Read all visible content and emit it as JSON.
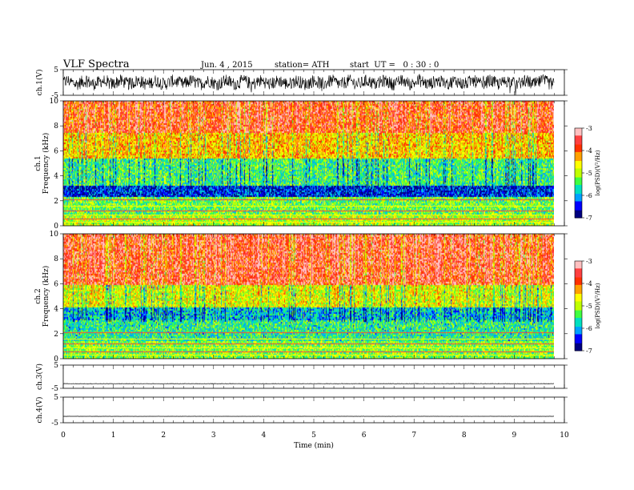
{
  "header": {
    "title": "VLF Spectra",
    "date": "Jun. 4 , 2015",
    "station": "station= ATH",
    "start_ut": "start  UT =   0 : 30 : 0"
  },
  "colors": {
    "colormap": [
      "#000080",
      "#0000ff",
      "#00a0ff",
      "#00e0c0",
      "#40ff40",
      "#c0ff00",
      "#ffff00",
      "#ffa000",
      "#ff3000",
      "#ff4040",
      "#ffc0c0"
    ],
    "waveform": "#000000"
  },
  "chart_data": [
    {
      "type": "line",
      "panel": "ch1-waveform",
      "ylabel": "ch.1(V)",
      "ylim": [
        -5,
        5
      ],
      "yticks": [
        "5",
        "-5"
      ],
      "x_range": [
        0,
        9.8
      ],
      "description_value": "continuous noisy signal, amplitude about ±3 V"
    },
    {
      "type": "heatmap",
      "panel": "ch1-spectrogram",
      "ylabel_channel": "ch.1",
      "ylabel": "Frequency  (kHz)",
      "ylim": [
        0,
        10
      ],
      "yticks": [
        "0",
        "2",
        "4",
        "6",
        "8",
        "10"
      ],
      "x_range": [
        0,
        9.8
      ],
      "colorbar_label": "log(PSD)(V²/Hz)",
      "colorbar_ticks": [
        "-3",
        "-4",
        "-5",
        "-6",
        "-7"
      ],
      "colorbar_range": [
        -7,
        -3
      ],
      "mean_level_by_band_kHz": [
        {
          "band": [
            0,
            1
          ],
          "level": -5.0
        },
        {
          "band": [
            1,
            2.4
          ],
          "level": -5.3
        },
        {
          "band": [
            2.4,
            3.3
          ],
          "level": -6.5
        },
        {
          "band": [
            3.3,
            5.5
          ],
          "level": -5.5
        },
        {
          "band": [
            5.5,
            7.5
          ],
          "level": -4.5
        },
        {
          "band": [
            7.5,
            10
          ],
          "level": -3.8
        }
      ]
    },
    {
      "type": "heatmap",
      "panel": "ch2-spectrogram",
      "ylabel_channel": "ch.2",
      "ylabel": "Frequency  (kHz)",
      "ylim": [
        0,
        10
      ],
      "yticks": [
        "0",
        "2",
        "4",
        "6",
        "8",
        "10"
      ],
      "x_range": [
        0,
        9.8
      ],
      "colorbar_label": "log(PSD)(V²/Hz)",
      "colorbar_ticks": [
        "-3",
        "-4",
        "-5",
        "-6",
        "-7"
      ],
      "colorbar_range": [
        -7,
        -3
      ],
      "mean_level_by_band_kHz": [
        {
          "band": [
            0,
            1.5
          ],
          "level": -5.2
        },
        {
          "band": [
            1.5,
            3.2
          ],
          "level": -5.6
        },
        {
          "band": [
            3.2,
            4.2
          ],
          "level": -5.9
        },
        {
          "band": [
            4.2,
            6
          ],
          "level": -4.8
        },
        {
          "band": [
            6,
            10
          ],
          "level": -3.7
        }
      ]
    },
    {
      "type": "line",
      "panel": "ch3-waveform",
      "ylabel": "ch.3(V)",
      "ylim": [
        -5,
        5
      ],
      "yticks": [
        "5",
        "-5"
      ],
      "x_range": [
        0,
        9.8
      ],
      "description_value": "flat line near -3 V"
    },
    {
      "type": "line",
      "panel": "ch4-waveform",
      "ylabel": "ch.4(V)",
      "ylim": [
        -5,
        5
      ],
      "yticks": [
        "5",
        "-5"
      ],
      "x_range": [
        0,
        9.8
      ],
      "description_value": "flat line near -2.5 V"
    }
  ],
  "x_axis": {
    "label": "Time  (min)",
    "ticks": [
      "0",
      "1",
      "2",
      "3",
      "4",
      "5",
      "6",
      "7",
      "8",
      "9",
      "10"
    ],
    "range": [
      0,
      10
    ]
  }
}
